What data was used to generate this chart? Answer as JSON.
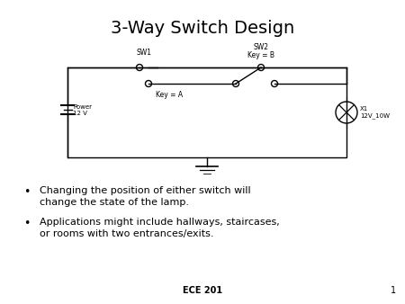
{
  "title": "3-Way Switch Design",
  "title_fontsize": 14,
  "background_color": "#ffffff",
  "bullet1": "Changing the position of either switch will\nchange the state of the lamp.",
  "bullet2": "Applications might include hallways, staircases,\nor rooms with two entrances/exits.",
  "footer": "ECE 201",
  "page_num": "1",
  "font_family": "DejaVu Sans",
  "bullet_fontsize": 8,
  "footer_fontsize": 7
}
